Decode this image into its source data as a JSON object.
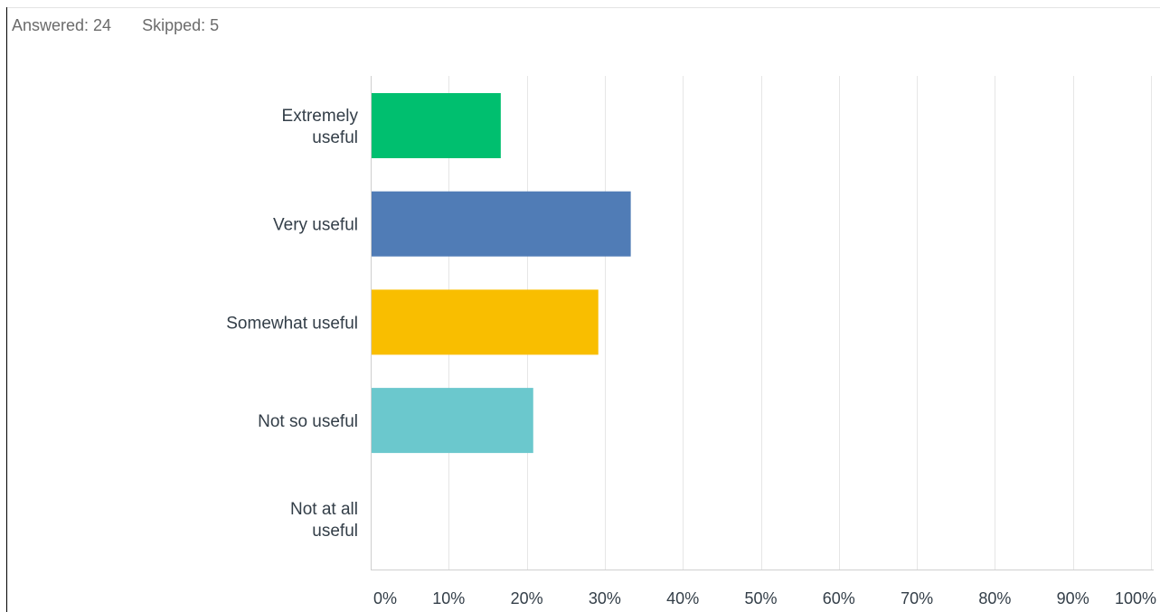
{
  "summary": {
    "answered": "Answered: 24",
    "skipped": "Skipped: 5"
  },
  "chart_data": {
    "type": "bar",
    "orientation": "horizontal",
    "categories": [
      [
        "Extremely",
        "useful"
      ],
      [
        "Very useful"
      ],
      [
        "Somewhat useful"
      ],
      [
        "Not so useful"
      ],
      [
        "Not at all",
        "useful"
      ]
    ],
    "values": [
      16.67,
      33.33,
      29.17,
      20.83,
      0
    ],
    "colors": [
      "#00bf6f",
      "#507cb6",
      "#f9be00",
      "#6bc8cd",
      "#ff8b4f"
    ],
    "xlim": [
      0,
      100
    ],
    "xticks": [
      "0%",
      "10%",
      "20%",
      "30%",
      "40%",
      "50%",
      "60%",
      "70%",
      "80%",
      "90%",
      "100%"
    ],
    "grid": true,
    "title": "",
    "xlabel": "",
    "ylabel": ""
  }
}
